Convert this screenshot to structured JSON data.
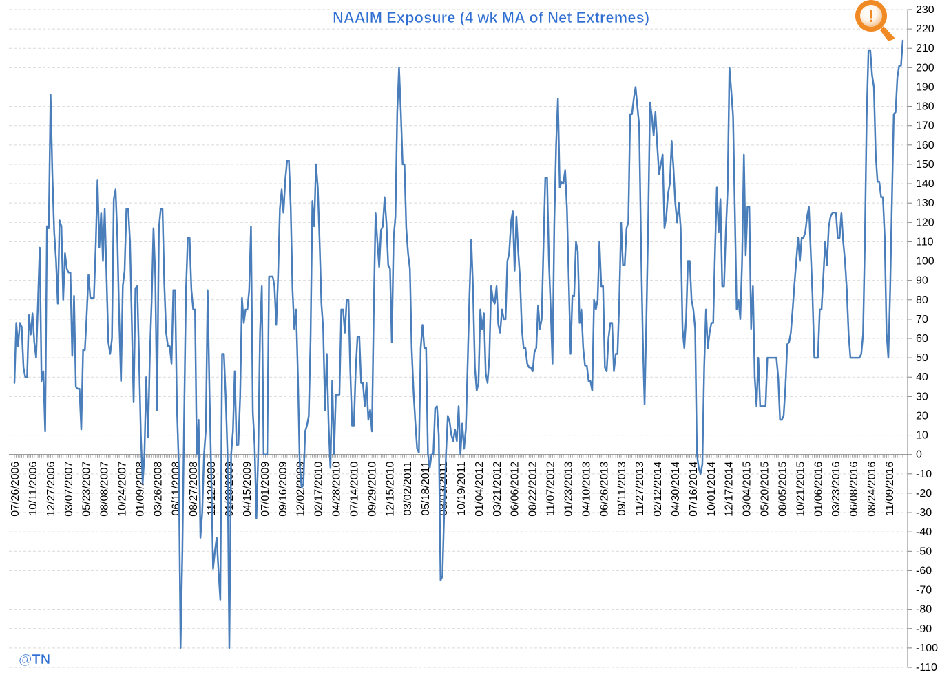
{
  "chart_data": {
    "type": "line",
    "title": "NAAIM Exposure (4 wk MA of Net Extremes)",
    "xlabel": "",
    "ylabel": "",
    "ylim": [
      -110,
      230
    ],
    "yticks": [
      230,
      220,
      210,
      200,
      190,
      180,
      170,
      160,
      150,
      140,
      130,
      120,
      110,
      100,
      90,
      80,
      70,
      60,
      50,
      40,
      30,
      20,
      10,
      0,
      -10,
      -20,
      -30,
      -40,
      -50,
      -60,
      -70,
      -80,
      -90,
      -100,
      -110
    ],
    "y_axis_position": "right",
    "grid": "horizontal dashed",
    "legend": "none",
    "x_tick_labels": [
      "07/26/2006",
      "10/11/2006",
      "12/27/2006",
      "03/07/2007",
      "05/23/2007",
      "08/08/2007",
      "10/24/2007",
      "01/09/2008",
      "03/26/2008",
      "06/11/2008",
      "08/27/2008",
      "11/12/2008",
      "01/28/2009",
      "04/15/2009",
      "07/01/2009",
      "09/16/2009",
      "12/02/2009",
      "02/17/2010",
      "04/28/2010",
      "07/14/2010",
      "09/29/2010",
      "12/15/2010",
      "03/02/2011",
      "05/18/2011",
      "08/03/2011",
      "10/19/2011",
      "01/04/2012",
      "03/21/2012",
      "06/06/2012",
      "08/22/2012",
      "11/07/2012",
      "01/23/2013",
      "04/10/2013",
      "06/26/2013",
      "09/11/2013",
      "11/27/2013",
      "02/12/2014",
      "04/30/2014",
      "07/16/2014",
      "10/01/2014",
      "12/17/2014",
      "03/04/2015",
      "05/20/2015",
      "08/05/2015",
      "10/21/2015",
      "01/06/2016",
      "03/23/2016",
      "06/08/2016",
      "08/24/2016",
      "11/09/2016"
    ],
    "series": [
      {
        "color": "#4a7ebb",
        "values": [
          37,
          68,
          56,
          68,
          66,
          45,
          40,
          40,
          72,
          62,
          73,
          58,
          50,
          78,
          107,
          38,
          43,
          12,
          118,
          117,
          186,
          145,
          115,
          101,
          78,
          121,
          118,
          80,
          104,
          96,
          94,
          94,
          51,
          82,
          35,
          34,
          34,
          13,
          54,
          54,
          72,
          93,
          81,
          81,
          81,
          108,
          142,
          107,
          125,
          100,
          127,
          92,
          58,
          52,
          60,
          132,
          137,
          112,
          70,
          38,
          87,
          95,
          127,
          127,
          110,
          68,
          27,
          86,
          87,
          50,
          10,
          -15,
          0,
          40,
          9,
          52,
          80,
          117,
          92,
          23,
          117,
          127,
          127,
          88,
          63,
          56,
          56,
          47,
          85,
          85,
          24,
          -5,
          -100,
          -50,
          20,
          85,
          112,
          112,
          85,
          75,
          75,
          0,
          18,
          -43,
          -30,
          0,
          13,
          85,
          33,
          -10,
          -59,
          -50,
          -43,
          -60,
          -75,
          52,
          52,
          30,
          0,
          -100,
          0,
          12,
          43,
          5,
          5,
          30,
          81,
          68,
          75,
          75,
          85,
          118,
          22,
          5,
          -33,
          0,
          63,
          87,
          0,
          0,
          0,
          92,
          92,
          92,
          87,
          67,
          92,
          127,
          137,
          125,
          142,
          152,
          152,
          128,
          85,
          65,
          75,
          40,
          -5,
          -17,
          -16,
          12,
          15,
          20,
          60,
          131,
          118,
          150,
          138,
          110,
          78,
          65,
          23,
          52,
          15,
          -7,
          38,
          0,
          31,
          31,
          31,
          75,
          75,
          63,
          80,
          80,
          43,
          15,
          15,
          44,
          61,
          61,
          37,
          37,
          25,
          37,
          18,
          23,
          12,
          75,
          125,
          110,
          97,
          116,
          118,
          133,
          120,
          98,
          96,
          58,
          112,
          123,
          177,
          200,
          177,
          150,
          150,
          117,
          104,
          96,
          55,
          33,
          17,
          3,
          1,
          55,
          67,
          55,
          55,
          0,
          -7,
          0,
          0,
          24,
          25,
          10,
          -65,
          -63,
          -30,
          0,
          20,
          17,
          10,
          7,
          13,
          7,
          25,
          0,
          16,
          3,
          13,
          47,
          82,
          111,
          85,
          45,
          33,
          37,
          75,
          65,
          73,
          42,
          37,
          50,
          87,
          80,
          78,
          87,
          67,
          63,
          75,
          70,
          70,
          100,
          104,
          120,
          126,
          95,
          123,
          105,
          91,
          65,
          55,
          55,
          47,
          45,
          45,
          43,
          53,
          55,
          77,
          65,
          70,
          108,
          143,
          143,
          100,
          75,
          47,
          120,
          160,
          184,
          138,
          141,
          140,
          147,
          127,
          90,
          52,
          82,
          82,
          110,
          105,
          68,
          75,
          55,
          46,
          46,
          38,
          38,
          33,
          80,
          75,
          80,
          110,
          87,
          87,
          45,
          43,
          60,
          68,
          68,
          43,
          52,
          52,
          80,
          120,
          98,
          98,
          117,
          120,
          176,
          176,
          184,
          190,
          180,
          170,
          110,
          60,
          26,
          70,
          120,
          182,
          175,
          165,
          177,
          160,
          145,
          150,
          155,
          117,
          123,
          135,
          140,
          162,
          148,
          130,
          120,
          130,
          117,
          65,
          55,
          70,
          100,
          100,
          80,
          75,
          65,
          0,
          -7,
          -10,
          -5,
          45,
          75,
          55,
          63,
          68,
          68,
          105,
          138,
          115,
          132,
          87,
          87,
          115,
          137,
          200,
          188,
          175,
          125,
          75,
          80,
          70,
          100,
          155,
          103,
          128,
          128,
          65,
          87,
          40,
          25,
          50,
          25,
          25,
          25,
          25,
          50,
          50,
          50,
          50,
          50,
          50,
          40,
          18,
          18,
          20,
          35,
          57,
          58,
          63,
          75,
          88,
          100,
          112,
          100,
          112,
          112,
          115,
          123,
          128,
          105,
          82,
          50,
          50,
          50,
          75,
          75,
          92,
          110,
          98,
          118,
          123,
          125,
          125,
          125,
          112,
          112,
          125,
          110,
          100,
          85,
          62,
          50,
          50,
          50,
          50,
          50,
          50,
          52,
          62,
          110,
          175,
          209,
          209,
          196,
          190,
          155,
          141,
          141,
          133,
          133,
          112,
          63,
          50,
          85,
          132,
          176,
          177,
          195,
          201,
          201,
          214
        ]
      }
    ]
  },
  "watermark": "@TN",
  "badge_icon": "exclamation-circle-icon",
  "badge_symbol": "!",
  "colors": {
    "line": "#4a7ebb",
    "title": "#2f6fd2",
    "badge": "#f08a24",
    "grid": "#d9d9d9",
    "axis": "#7f7f7f"
  }
}
